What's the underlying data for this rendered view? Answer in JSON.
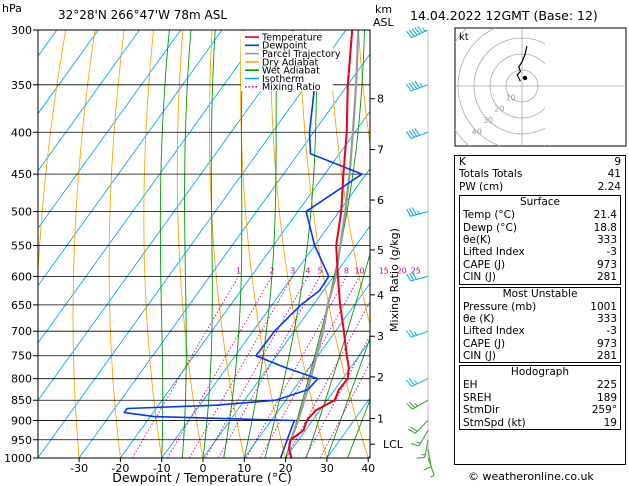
{
  "header": {
    "pressure_unit": "hPa",
    "location": "32°28'N  266°47'W  78m  ASL",
    "height_unit_top": "km",
    "height_unit_bottom": "ASL",
    "datetime": "14.04.2022  12GMT  (Base: 12)"
  },
  "chart_data": {
    "type": "skew-t",
    "title": "32°28'N 266°47'W 78m ASL",
    "xlabel": "Dewpoint / Temperature (°C)",
    "ylabel": "hPa",
    "right_axis_label": "Mixing Ratio (g/kg)",
    "pressure_levels": [
      300,
      350,
      400,
      450,
      500,
      550,
      600,
      650,
      700,
      750,
      800,
      850,
      900,
      950,
      1000
    ],
    "temperature_ticks": [
      -30,
      -20,
      -10,
      0,
      10,
      20,
      30,
      40
    ],
    "xlim": [
      -40,
      40
    ],
    "plim": [
      1000,
      300
    ],
    "km_ticks": [
      {
        "label": "8",
        "p": 364
      },
      {
        "label": "7",
        "p": 420
      },
      {
        "label": "6",
        "p": 484
      },
      {
        "label": "5",
        "p": 557
      },
      {
        "label": "4",
        "p": 632
      },
      {
        "label": "3",
        "p": 710
      },
      {
        "label": "2",
        "p": 796
      },
      {
        "label": "1",
        "p": 895
      },
      {
        "label": "LCL",
        "p": 962
      }
    ],
    "mixing_ratio_labels": [
      "1",
      "2",
      "3",
      "4",
      "5",
      "8",
      "10",
      "15",
      "20",
      "25"
    ],
    "mixing_ratio_values": [
      1,
      2,
      3,
      4,
      5,
      8,
      10,
      15,
      20,
      25
    ],
    "legend": [
      {
        "name": "Temperature",
        "color": "#e8001c"
      },
      {
        "name": "Dewpoint",
        "color": "#0037ff"
      },
      {
        "name": "Parcel Trajectory",
        "color": "#999999"
      },
      {
        "name": "Dry Adiabat",
        "color": "#ffa500"
      },
      {
        "name": "Wet Adiabat",
        "color": "#009900"
      },
      {
        "name": "Isotherm",
        "color": "#00aaff"
      },
      {
        "name": "Mixing Ratio",
        "color": "#cc00aa"
      }
    ],
    "series": [
      {
        "name": "Temperature",
        "points": [
          [
            1000,
            21.4
          ],
          [
            975,
            19.2
          ],
          [
            950,
            18
          ],
          [
            925,
            19.5
          ],
          [
            900,
            18.6
          ],
          [
            875,
            19
          ],
          [
            850,
            21.8
          ],
          [
            825,
            21
          ],
          [
            800,
            21.2
          ],
          [
            775,
            19.5
          ],
          [
            750,
            17
          ],
          [
            700,
            12
          ],
          [
            650,
            6.5
          ],
          [
            600,
            1
          ],
          [
            550,
            -4.8
          ],
          [
            500,
            -9.5
          ],
          [
            450,
            -15.5
          ],
          [
            400,
            -22
          ],
          [
            350,
            -30
          ],
          [
            300,
            -38.5
          ]
        ]
      },
      {
        "name": "Dewpoint",
        "points": [
          [
            1000,
            18.8
          ],
          [
            975,
            18
          ],
          [
            950,
            17.2
          ],
          [
            925,
            16.4
          ],
          [
            900,
            15.6
          ],
          [
            890,
            -19
          ],
          [
            880,
            -27
          ],
          [
            870,
            -27
          ],
          [
            862,
            -6
          ],
          [
            850,
            7.5
          ],
          [
            825,
            13.5
          ],
          [
            800,
            14
          ],
          [
            775,
            4
          ],
          [
            750,
            -5
          ],
          [
            700,
            -4.8
          ],
          [
            650,
            -3
          ],
          [
            625,
            -1
          ],
          [
            600,
            -1.2
          ],
          [
            550,
            -10
          ],
          [
            500,
            -18
          ],
          [
            450,
            -11
          ],
          [
            425,
            -27
          ],
          [
            400,
            -31
          ],
          [
            350,
            -38
          ],
          [
            325,
            -44
          ],
          [
            300,
            -53
          ]
        ]
      },
      {
        "name": "Parcel Trajectory",
        "points": [
          [
            1000,
            21.4
          ],
          [
            962,
            18.5
          ],
          [
            900,
            16.5
          ],
          [
            850,
            14.5
          ],
          [
            800,
            12.2
          ],
          [
            750,
            9.7
          ],
          [
            700,
            7
          ],
          [
            650,
            3.5
          ],
          [
            600,
            0.5
          ],
          [
            550,
            -3.8
          ],
          [
            500,
            -8.5
          ],
          [
            450,
            -14
          ],
          [
            400,
            -20.5
          ],
          [
            350,
            -28
          ],
          [
            300,
            -37
          ]
        ]
      }
    ],
    "winds": [
      {
        "p": 1000,
        "dir": 160,
        "spd": 5
      },
      {
        "p": 975,
        "dir": 170,
        "spd": 10
      },
      {
        "p": 950,
        "dir": 190,
        "spd": 15
      },
      {
        "p": 925,
        "dir": 210,
        "spd": 15
      },
      {
        "p": 900,
        "dir": 225,
        "spd": 20
      },
      {
        "p": 850,
        "dir": 240,
        "spd": 25
      },
      {
        "p": 800,
        "dir": 245,
        "spd": 25
      },
      {
        "p": 700,
        "dir": 250,
        "spd": 25
      },
      {
        "p": 600,
        "dir": 255,
        "spd": 30
      },
      {
        "p": 500,
        "dir": 255,
        "spd": 35
      },
      {
        "p": 400,
        "dir": 250,
        "spd": 40
      },
      {
        "p": 350,
        "dir": 250,
        "spd": 45
      },
      {
        "p": 300,
        "dir": 245,
        "spd": 55
      }
    ],
    "hodograph": {
      "title": "kt",
      "ring_labels": [
        "10",
        "20",
        "30",
        "40"
      ],
      "trace_kt": [
        [
          -1,
          3
        ],
        [
          -2,
          5
        ],
        [
          -3,
          7
        ],
        [
          -1,
          9
        ],
        [
          -2,
          12
        ],
        [
          0,
          15
        ],
        [
          2,
          20
        ],
        [
          3,
          25
        ]
      ]
    }
  },
  "stats": {
    "top": [
      {
        "label": "K",
        "value": "9"
      },
      {
        "label": "Totals Totals",
        "value": "41"
      },
      {
        "label": "PW (cm)",
        "value": "2.24"
      }
    ],
    "surface": {
      "title": "Surface",
      "rows": [
        {
          "label": "Temp (°C)",
          "value": "21.4"
        },
        {
          "label": "Dewp (°C)",
          "value": "18.8"
        },
        {
          "label": "θe(K)",
          "value": "333"
        },
        {
          "label": "Lifted Index",
          "value": "-3"
        },
        {
          "label": "CAPE (J)",
          "value": "973"
        },
        {
          "label": "CIN (J)",
          "value": "281"
        }
      ]
    },
    "unstable": {
      "title": "Most Unstable",
      "rows": [
        {
          "label": "Pressure (mb)",
          "value": "1001"
        },
        {
          "label": "θe (K)",
          "value": "333"
        },
        {
          "label": "Lifted Index",
          "value": "-3"
        },
        {
          "label": "CAPE (J)",
          "value": "973"
        },
        {
          "label": "CIN (J)",
          "value": "281"
        }
      ]
    },
    "hodograph": {
      "title": "Hodograph",
      "rows": [
        {
          "label": "EH",
          "value": "225"
        },
        {
          "label": "SREH",
          "value": "189"
        },
        {
          "label": "StmDir",
          "value": "259°"
        },
        {
          "label": "StmSpd (kt)",
          "value": "19"
        }
      ]
    }
  },
  "footer": "© weatheronline.co.uk"
}
